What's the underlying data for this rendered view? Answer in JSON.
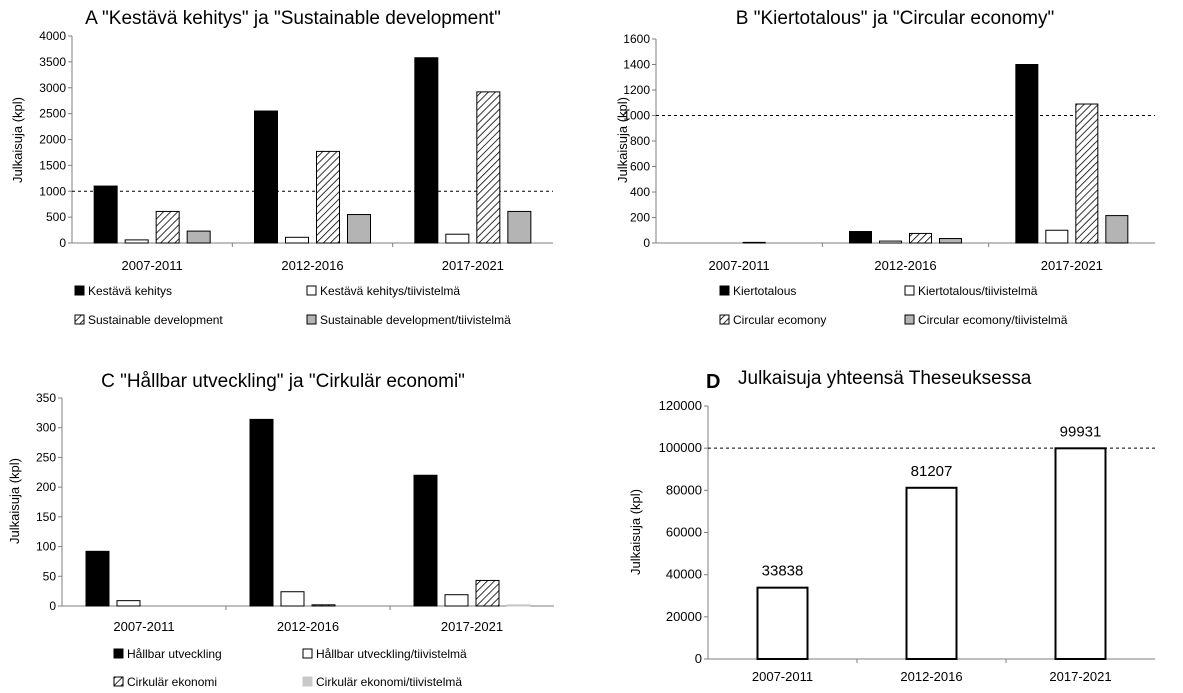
{
  "chart_data": [
    {
      "panel": "A",
      "type": "bar",
      "title": "A \"Kestävä kehitys\" ja \"Sustainable development\"",
      "ylabel": "Julkaisuja (kpl)",
      "xlabel": "",
      "ylim": [
        0,
        4000
      ],
      "yticks": [
        "0",
        "500",
        "1000",
        "1500",
        "2000",
        "2500",
        "3000",
        "3500",
        "4000"
      ],
      "reference_line": 1000,
      "categories": [
        "2007-2011",
        "2012-2016",
        "2017-2021"
      ],
      "series": [
        {
          "name": "Kestävä kehitys",
          "pattern": "black",
          "values": [
            1100,
            2550,
            3580
          ]
        },
        {
          "name": "Kestävä kehitys/tiivistelmä",
          "pattern": "white",
          "values": [
            60,
            110,
            170
          ]
        },
        {
          "name": "Sustainable development",
          "pattern": "hatch",
          "values": [
            610,
            1770,
            2920
          ]
        },
        {
          "name": "Sustainable development/tiivistelmä",
          "pattern": "gray",
          "values": [
            230,
            550,
            610
          ]
        }
      ],
      "legend_position": "bottom",
      "grid": false
    },
    {
      "panel": "B",
      "type": "bar",
      "title": "B \"Kiertotalous\" ja \"Circular economy\"",
      "ylabel": "Julkaisuja (kpl)",
      "xlabel": "",
      "ylim": [
        0,
        1600
      ],
      "yticks": [
        "0",
        "200",
        "400",
        "600",
        "800",
        "1000",
        "1200",
        "1400",
        "1600"
      ],
      "reference_line": 1000,
      "categories": [
        "2007-2011",
        "2012-2016",
        "2017-2021"
      ],
      "series": [
        {
          "name": "Kiertotalous",
          "pattern": "black",
          "values": [
            0,
            90,
            1400
          ]
        },
        {
          "name": "Kiertotalous/tiivistelmä",
          "pattern": "white",
          "values": [
            0,
            15,
            100
          ]
        },
        {
          "name": "Circular ecomony",
          "pattern": "hatch",
          "values": [
            5,
            75,
            1090
          ]
        },
        {
          "name": "Circular ecomony/tiivistelmä",
          "pattern": "gray",
          "values": [
            0,
            35,
            215
          ]
        }
      ],
      "legend_position": "bottom",
      "grid": false
    },
    {
      "panel": "C",
      "type": "bar",
      "title": "C \"Hållbar utveckling\" ja \"Cirkulär economi\"",
      "ylabel": "Julkaisuja (kpl)",
      "xlabel": "",
      "ylim": [
        0,
        350
      ],
      "yticks": [
        "0",
        "50",
        "100",
        "150",
        "200",
        "250",
        "300",
        "350"
      ],
      "reference_line": null,
      "categories": [
        "2007-2011",
        "2012-2016",
        "2017-2021"
      ],
      "series": [
        {
          "name": "Hållbar utveckling",
          "pattern": "black",
          "values": [
            92,
            314,
            220
          ]
        },
        {
          "name": "Hållbar utveckling/tiivistelmä",
          "pattern": "white",
          "values": [
            9,
            24,
            19
          ]
        },
        {
          "name": "Cirkulär ekonomi",
          "pattern": "hatch",
          "values": [
            0,
            2,
            43
          ]
        },
        {
          "name": "Cirkulär ekonomi/tiivistelmä",
          "pattern": "lightgray",
          "values": [
            0,
            0,
            2
          ]
        }
      ],
      "legend_position": "bottom",
      "grid": false
    },
    {
      "panel": "D",
      "type": "bar",
      "panel_label": "D",
      "title": "Julkaisuja yhteensä Theseuksessa",
      "ylabel": "Julkaisuja (kpl)",
      "xlabel": "",
      "ylim": [
        0,
        120000
      ],
      "yticks": [
        "0",
        "20000",
        "40000",
        "60000",
        "80000",
        "100000",
        "120000"
      ],
      "reference_line": 100000,
      "categories": [
        "2007-2011",
        "2012-2016",
        "2017-2021"
      ],
      "series": [
        {
          "pattern": "white",
          "values": [
            33838,
            81207,
            99931
          ]
        }
      ],
      "data_labels": [
        "33838",
        "81207",
        "99931"
      ],
      "grid": false
    }
  ]
}
